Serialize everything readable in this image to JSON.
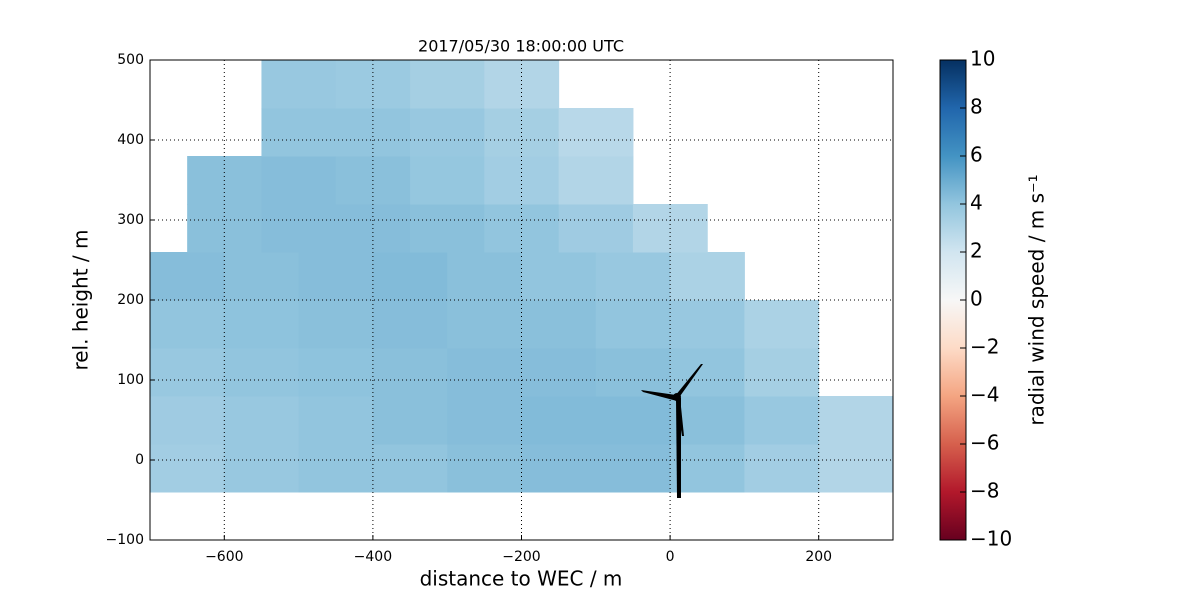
{
  "chart_data": {
    "type": "scatter",
    "title": "2017/05/30 18:00:00 UTC",
    "xlabel": "distance to WEC / m",
    "ylabel": "rel. height / m",
    "colorbar_label": "radial wind speed / m s⁻¹",
    "colormap": "RdBu",
    "clim": [
      -10,
      10
    ],
    "cticks": [
      {
        "value": -10,
        "label": "−10"
      },
      {
        "value": -8,
        "label": "−8"
      },
      {
        "value": -6,
        "label": "−6"
      },
      {
        "value": -4,
        "label": "−4"
      },
      {
        "value": -2,
        "label": "−2"
      },
      0,
      2,
      4,
      6,
      8,
      10
    ],
    "xlim": [
      -700,
      300
    ],
    "xticks": [
      {
        "value": -600,
        "label": "−600"
      },
      {
        "value": -400,
        "label": "−400"
      },
      {
        "value": -200,
        "label": "−200"
      },
      0,
      200
    ],
    "ylim": [
      -100,
      500
    ],
    "yticks": [
      {
        "value": -100,
        "label": "−100"
      },
      0,
      100,
      200,
      300,
      400,
      500
    ],
    "grid": true,
    "x": [
      -650,
      -550,
      -450,
      -350,
      -250,
      -150,
      -50,
      50,
      150,
      250,
      -650,
      -550,
      -450,
      -350,
      -250,
      -150,
      -50,
      50,
      150,
      250,
      -650,
      -550,
      -450,
      -350,
      -250,
      -150,
      -50,
      50,
      150,
      -650,
      -550,
      -450,
      -350,
      -250,
      -150,
      -50,
      50,
      150,
      -650,
      -550,
      -450,
      -350,
      -250,
      -150,
      -50,
      50,
      -600,
      -500,
      -400,
      -300,
      -200,
      -100,
      0,
      -600,
      -500,
      -400,
      -300,
      -200,
      -100,
      -500,
      -400,
      -300,
      -200,
      -100,
      -500,
      -400,
      -300,
      -200
    ],
    "y": [
      -10,
      -10,
      -10,
      -10,
      -10,
      -10,
      -10,
      -10,
      -10,
      -10,
      50,
      50,
      50,
      50,
      50,
      50,
      50,
      50,
      50,
      50,
      110,
      110,
      110,
      110,
      110,
      110,
      110,
      110,
      110,
      170,
      170,
      170,
      170,
      170,
      170,
      170,
      170,
      170,
      230,
      230,
      230,
      230,
      230,
      230,
      230,
      230,
      290,
      290,
      290,
      290,
      290,
      290,
      290,
      350,
      350,
      350,
      350,
      350,
      350,
      410,
      410,
      410,
      410,
      410,
      470,
      470,
      470,
      470
    ],
    "values": [
      3.5,
      3.8,
      4,
      4,
      4.2,
      4.3,
      4.3,
      4,
      3.5,
      3,
      3.6,
      3.8,
      4,
      4.2,
      4.3,
      4.4,
      4.4,
      4.2,
      3.8,
      3,
      3.8,
      4,
      4.1,
      4.2,
      4.3,
      4.3,
      4.2,
      4,
      3.4,
      4,
      4.1,
      4.2,
      4.3,
      4.2,
      4.2,
      4,
      3.8,
      3.2,
      4.3,
      4.2,
      4.3,
      4.4,
      4.2,
      4,
      3.8,
      3.2,
      4.2,
      4.3,
      4.3,
      4.2,
      4,
      3.6,
      3,
      4.2,
      4.3,
      4.2,
      3.9,
      3.5,
      3,
      4,
      4,
      3.8,
      3.4,
      2.8,
      3.8,
      3.7,
      3.4,
      3
    ]
  }
}
